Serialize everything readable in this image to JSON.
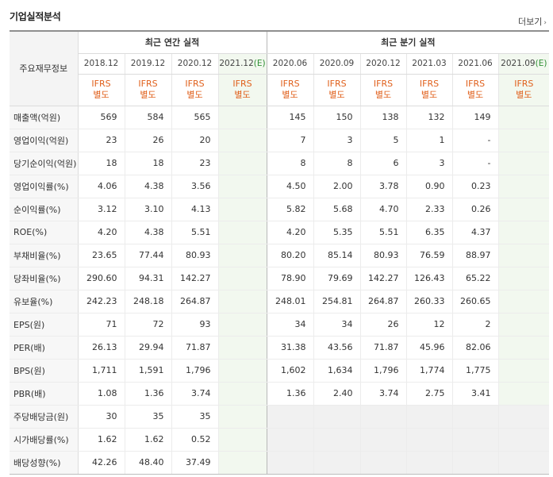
{
  "title": "기업실적분석",
  "more_label": "더보기",
  "more_icon": "chevron-right-icon",
  "header": {
    "row_label": "주요재무정보",
    "annual_group": "최근 연간 실적",
    "quarter_group": "최근 분기 실적",
    "annual_periods": [
      {
        "year": "2018.12",
        "est": ""
      },
      {
        "year": "2019.12",
        "est": ""
      },
      {
        "year": "2020.12",
        "est": ""
      },
      {
        "year": "2021.12",
        "est": "(E)"
      }
    ],
    "quarter_periods": [
      {
        "year": "2020.06",
        "est": ""
      },
      {
        "year": "2020.09",
        "est": ""
      },
      {
        "year": "2020.12",
        "est": ""
      },
      {
        "year": "2021.03",
        "est": ""
      },
      {
        "year": "2021.06",
        "est": ""
      },
      {
        "year": "2021.09",
        "est": "(E)"
      }
    ],
    "ifrs_line1": "IFRS",
    "ifrs_line2": "별도"
  },
  "colors": {
    "ifrs": "#e0601c",
    "estimate_bg": "#f2f8ef",
    "estimate_text": "#2f8f34"
  },
  "rows": [
    {
      "label": "매출액(억원)",
      "values": [
        "569",
        "584",
        "565",
        "",
        "145",
        "150",
        "138",
        "132",
        "149",
        ""
      ]
    },
    {
      "label": "영업이익(억원)",
      "values": [
        "23",
        "26",
        "20",
        "",
        "7",
        "3",
        "5",
        "1",
        "-",
        ""
      ]
    },
    {
      "label": "당기순이익(억원)",
      "values": [
        "18",
        "18",
        "23",
        "",
        "8",
        "8",
        "6",
        "3",
        "-",
        ""
      ]
    },
    {
      "label": "영업이익률(%)",
      "values": [
        "4.06",
        "4.38",
        "3.56",
        "",
        "4.50",
        "2.00",
        "3.78",
        "0.90",
        "0.23",
        ""
      ]
    },
    {
      "label": "순이익률(%)",
      "values": [
        "3.12",
        "3.10",
        "4.13",
        "",
        "5.82",
        "5.68",
        "4.70",
        "2.33",
        "0.26",
        ""
      ]
    },
    {
      "label": "ROE(%)",
      "values": [
        "4.20",
        "4.38",
        "5.51",
        "",
        "4.20",
        "5.35",
        "5.51",
        "6.35",
        "4.37",
        ""
      ]
    },
    {
      "label": "부채비율(%)",
      "values": [
        "23.65",
        "77.44",
        "80.93",
        "",
        "80.20",
        "85.14",
        "80.93",
        "76.59",
        "88.97",
        ""
      ]
    },
    {
      "label": "당좌비율(%)",
      "values": [
        "290.60",
        "94.31",
        "142.27",
        "",
        "78.90",
        "79.69",
        "142.27",
        "126.43",
        "65.22",
        ""
      ]
    },
    {
      "label": "유보율(%)",
      "values": [
        "242.23",
        "248.18",
        "264.87",
        "",
        "248.01",
        "254.81",
        "264.87",
        "260.33",
        "260.65",
        ""
      ]
    },
    {
      "label": "EPS(원)",
      "values": [
        "71",
        "72",
        "93",
        "",
        "34",
        "34",
        "26",
        "12",
        "2",
        ""
      ]
    },
    {
      "label": "PER(배)",
      "values": [
        "26.13",
        "29.94",
        "71.87",
        "",
        "31.38",
        "43.56",
        "71.87",
        "45.96",
        "82.06",
        ""
      ]
    },
    {
      "label": "BPS(원)",
      "values": [
        "1,711",
        "1,591",
        "1,796",
        "",
        "1,602",
        "1,634",
        "1,796",
        "1,774",
        "1,775",
        ""
      ]
    },
    {
      "label": "PBR(배)",
      "values": [
        "1.08",
        "1.36",
        "3.74",
        "",
        "1.36",
        "2.40",
        "3.74",
        "2.75",
        "3.41",
        ""
      ]
    },
    {
      "label": "주당배당금(원)",
      "values": [
        "30",
        "35",
        "35",
        "",
        "",
        "",
        "",
        "",
        "",
        ""
      ]
    },
    {
      "label": "시가배당률(%)",
      "values": [
        "1.62",
        "1.62",
        "0.52",
        "",
        "",
        "",
        "",
        "",
        "",
        ""
      ]
    },
    {
      "label": "배당성향(%)",
      "values": [
        "42.26",
        "48.40",
        "37.49",
        "",
        "",
        "",
        "",
        "",
        "",
        ""
      ]
    }
  ]
}
